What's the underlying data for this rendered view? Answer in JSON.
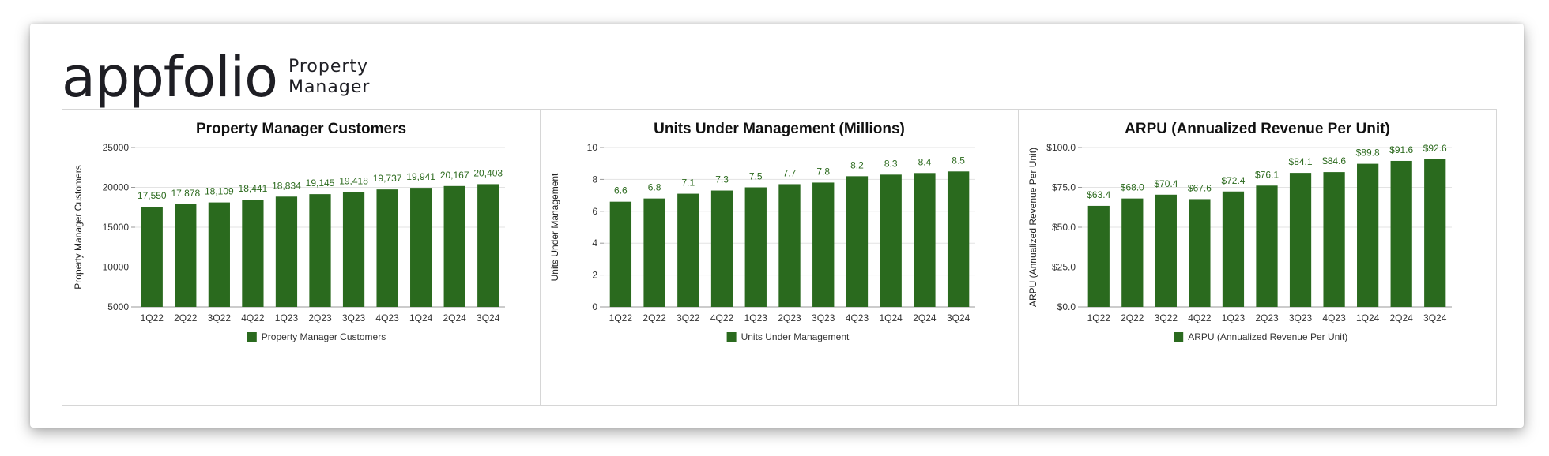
{
  "header": {
    "logo_text": "appfolio",
    "product_line1": "Property",
    "product_line2": "Manager"
  },
  "colors": {
    "bar": "#2a6a1e",
    "label": "#2d6b1f",
    "grid": "#e3e3e3",
    "axis": "#999999"
  },
  "chart_data": [
    {
      "type": "bar",
      "title": "Property Manager Customers",
      "ylabel": "Property Manager Customers",
      "legend": "Property Manager Customers",
      "legend_position": "bottom",
      "categories": [
        "1Q22",
        "2Q22",
        "3Q22",
        "4Q22",
        "1Q23",
        "2Q23",
        "3Q23",
        "4Q23",
        "1Q24",
        "2Q24",
        "3Q24"
      ],
      "values": [
        17550,
        17878,
        18109,
        18441,
        18834,
        19145,
        19418,
        19737,
        19941,
        20167,
        20403
      ],
      "value_labels": [
        "17,550",
        "17,878",
        "18,109",
        "18,441",
        "18,834",
        "19,145",
        "19,418",
        "19,737",
        "19,941",
        "20,167",
        "20,403"
      ],
      "ylim": [
        5000,
        25000
      ],
      "yticks": [
        5000,
        10000,
        15000,
        20000,
        25000
      ],
      "ytick_labels": [
        "5000",
        "10000",
        "15000",
        "20000",
        "25000"
      ],
      "grid": true
    },
    {
      "type": "bar",
      "title": "Units Under Management (Millions)",
      "ylabel": "Units Under Management",
      "legend": "Units Under Management",
      "legend_position": "bottom",
      "categories": [
        "1Q22",
        "2Q22",
        "3Q22",
        "4Q22",
        "1Q23",
        "2Q23",
        "3Q23",
        "4Q23",
        "1Q24",
        "2Q24",
        "3Q24"
      ],
      "values": [
        6.6,
        6.8,
        7.1,
        7.3,
        7.5,
        7.7,
        7.8,
        8.2,
        8.3,
        8.4,
        8.5
      ],
      "value_labels": [
        "6.6",
        "6.8",
        "7.1",
        "7.3",
        "7.5",
        "7.7",
        "7.8",
        "8.2",
        "8.3",
        "8.4",
        "8.5"
      ],
      "ylim": [
        0,
        10
      ],
      "yticks": [
        0,
        2,
        4,
        6,
        8,
        10
      ],
      "ytick_labels": [
        "0",
        "2",
        "4",
        "6",
        "8",
        "10"
      ],
      "grid": true
    },
    {
      "type": "bar",
      "title": "ARPU (Annualized Revenue Per Unit)",
      "ylabel": "ARPU (Annualized Revenue Per Unit)",
      "legend": "ARPU (Annualized Revenue Per Unit)",
      "legend_position": "bottom",
      "categories": [
        "1Q22",
        "2Q22",
        "3Q22",
        "4Q22",
        "1Q23",
        "2Q23",
        "3Q23",
        "4Q23",
        "1Q24",
        "2Q24",
        "3Q24"
      ],
      "values": [
        63.4,
        68.0,
        70.4,
        67.6,
        72.4,
        76.1,
        84.1,
        84.6,
        89.8,
        91.6,
        92.6
      ],
      "value_labels": [
        "$63.4",
        "$68.0",
        "$70.4",
        "$67.6",
        "$72.4",
        "$76.1",
        "$84.1",
        "$84.6",
        "$89.8",
        "$91.6",
        "$92.6"
      ],
      "ylim": [
        0,
        100
      ],
      "yticks": [
        0,
        25,
        50,
        75,
        100
      ],
      "ytick_labels": [
        "$0.0",
        "$25.0",
        "$50.0",
        "$75.0",
        "$100.0"
      ],
      "grid": true
    }
  ]
}
